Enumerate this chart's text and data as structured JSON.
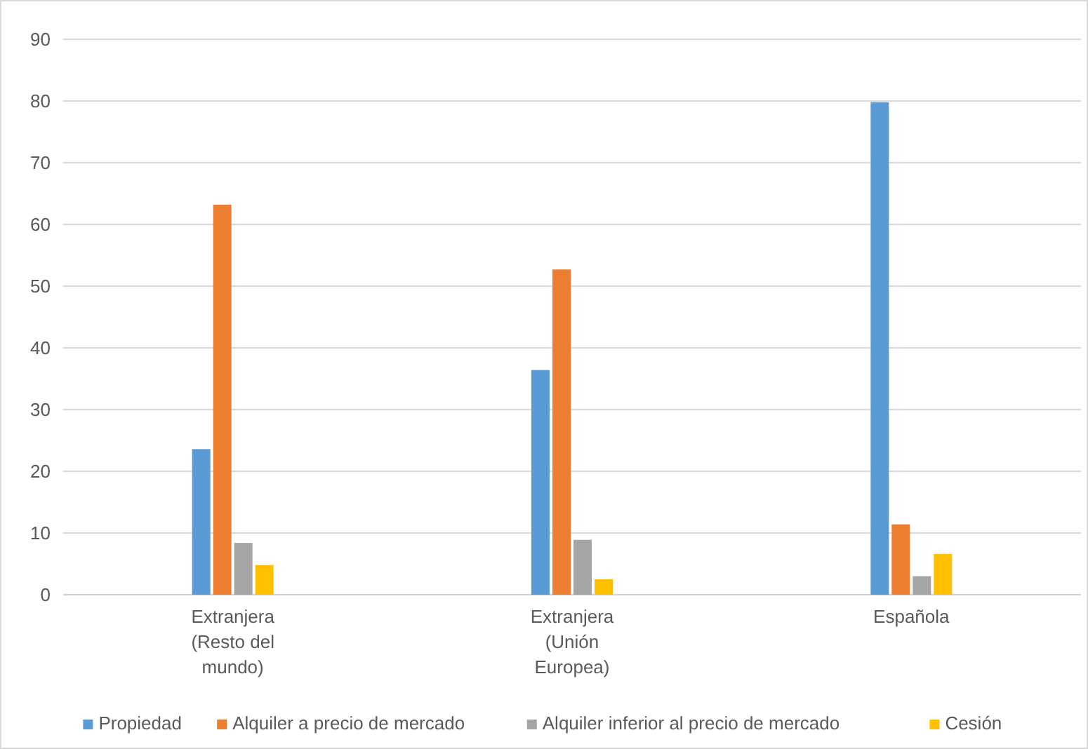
{
  "chart_data": {
    "type": "bar",
    "categories": [
      "Extranjera (Resto del mundo)",
      "Extranjera (Unión Europea)",
      "Española"
    ],
    "series": [
      {
        "name": "Propiedad",
        "color": "#5b9bd5",
        "values": [
          23.6,
          36.4,
          79.8
        ]
      },
      {
        "name": "Alquiler a precio de mercado",
        "color": "#ed7d31",
        "values": [
          63.2,
          52.7,
          11.4
        ]
      },
      {
        "name": "Alquiler inferior al precio de mercado",
        "color": "#a5a5a5",
        "values": [
          8.4,
          8.9,
          3.0
        ]
      },
      {
        "name": "Cesión",
        "color": "#ffc000",
        "values": [
          4.8,
          2.5,
          6.6
        ]
      }
    ],
    "ylim": [
      0,
      90
    ],
    "yticks": [
      0,
      10,
      20,
      30,
      40,
      50,
      60,
      70,
      80,
      90
    ],
    "grid": "y",
    "legend": "bottom"
  }
}
